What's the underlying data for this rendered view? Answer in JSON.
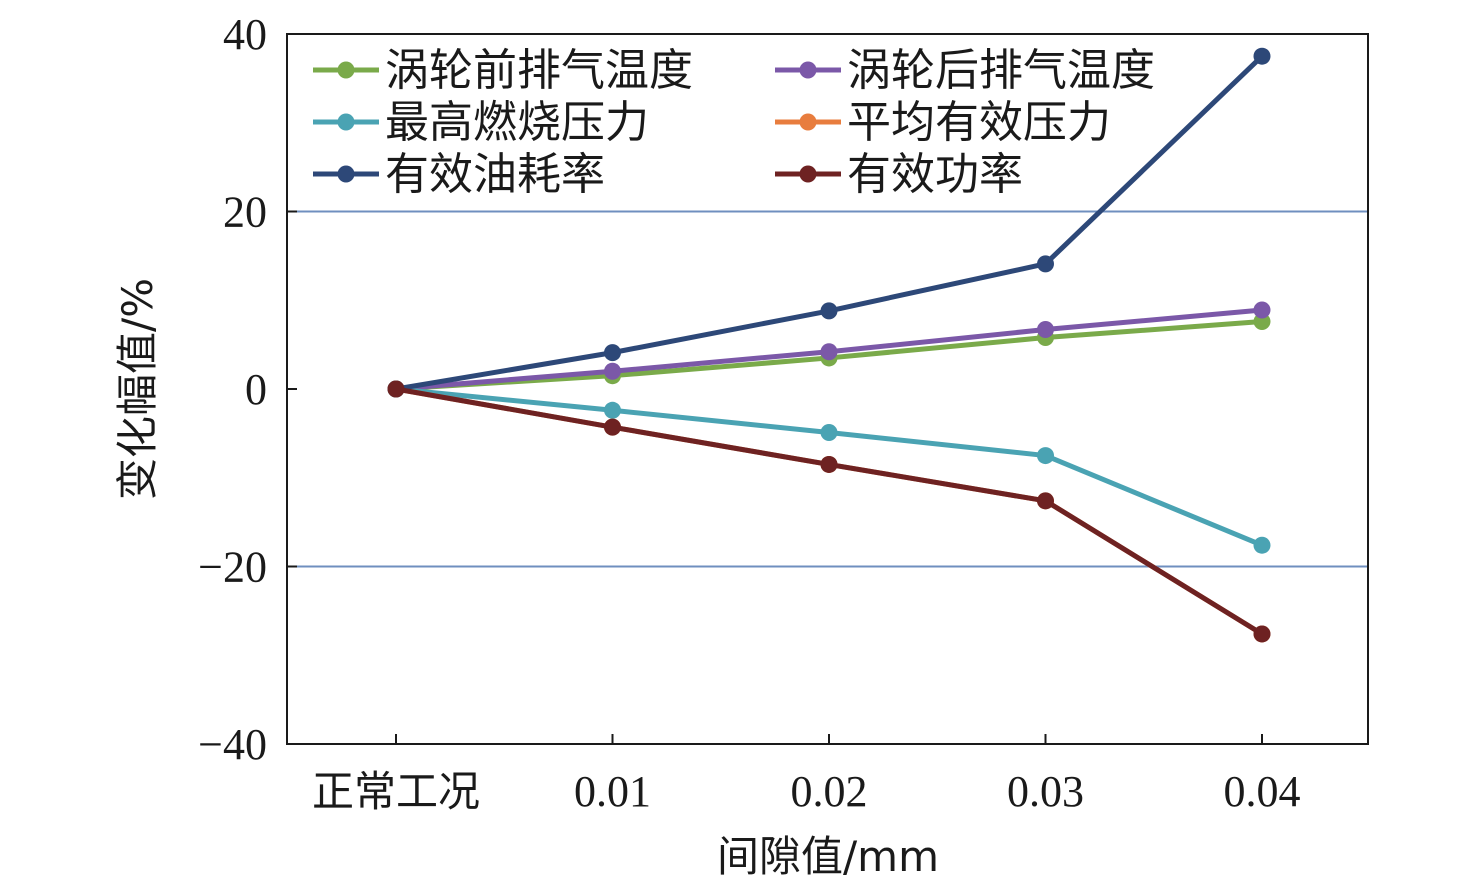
{
  "chart_data": {
    "type": "line",
    "title": "",
    "xlabel": "间隙值/mm",
    "ylabel": "变化幅值/%",
    "categories": [
      "正常工况",
      "0.01",
      "0.02",
      "0.03",
      "0.04"
    ],
    "ylim": [
      -40,
      40
    ],
    "yticks": [
      "40",
      "20",
      "0",
      "−20",
      "−40"
    ],
    "ytick_values": [
      40,
      20,
      0,
      -20,
      -40
    ],
    "reference_lines": [
      20,
      -20
    ],
    "legend_position": "top-left",
    "series": [
      {
        "name": "涡轮前排气温度",
        "color": "#7aaa4a",
        "values": [
          0,
          1.5,
          3.5,
          5.8,
          7.6
        ]
      },
      {
        "name": "涡轮后排气温度",
        "color": "#7b58a8",
        "values": [
          0,
          2.0,
          4.2,
          6.7,
          8.9
        ]
      },
      {
        "name": "最高燃烧压力",
        "color": "#4aa3b3",
        "values": [
          0,
          -2.4,
          -4.9,
          -7.5,
          -17.6
        ]
      },
      {
        "name": "平均有效压力",
        "color": "#e87d3e",
        "values": [
          0,
          -4.3,
          -8.5,
          -12.6,
          -27.6
        ]
      },
      {
        "name": "有效油耗率",
        "color": "#2d4878",
        "values": [
          0,
          4.1,
          8.8,
          14.1,
          37.5
        ]
      },
      {
        "name": "有效功率",
        "color": "#6e2222",
        "values": [
          0,
          -4.3,
          -8.5,
          -12.6,
          -27.6
        ]
      }
    ]
  }
}
